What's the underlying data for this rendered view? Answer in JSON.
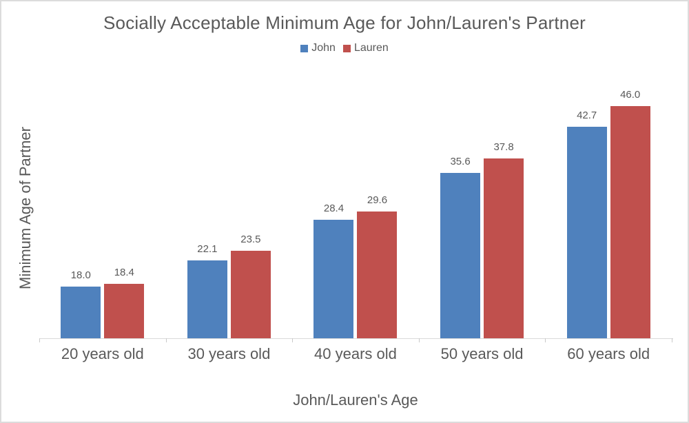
{
  "window": {
    "background": "#FFFFFF",
    "border_color": "#DCDCDC"
  },
  "chart_data": {
    "type": "bar",
    "title": "Socially Acceptable Minimum Age for John/Lauren's Partner",
    "xlabel": "John/Lauren's Age",
    "ylabel": "Minimum Age of Partner",
    "categories": [
      "20 years old",
      "30 years old",
      "40 years old",
      "50 years old",
      "60 years old"
    ],
    "series": [
      {
        "name": "John",
        "color": "#4F81BD",
        "values": [
          18.0,
          22.1,
          28.4,
          35.6,
          42.7
        ]
      },
      {
        "name": "Lauren",
        "color": "#C0504D",
        "values": [
          18.4,
          23.5,
          29.6,
          37.8,
          46.0
        ]
      }
    ],
    "data_labels": {
      "visible": true,
      "format": "one_decimal",
      "values": [
        [
          "18.0",
          "22.1",
          "28.4",
          "35.6",
          "42.7"
        ],
        [
          "18.4",
          "23.5",
          "29.6",
          "37.8",
          "46.0"
        ]
      ]
    },
    "ylim": [
      10,
      50
    ],
    "grid": false,
    "legend_position": "top",
    "colors": {
      "axis_line": "#D9D9D9",
      "tick": "#C9C9C9",
      "text": "#595959"
    }
  }
}
